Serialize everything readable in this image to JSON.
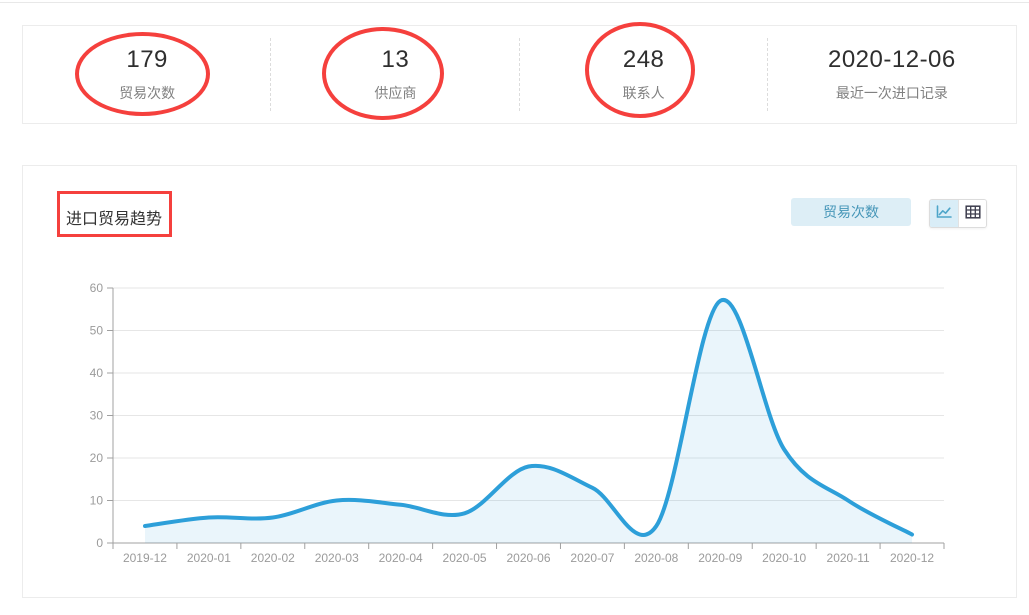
{
  "stats": {
    "items": [
      {
        "value": "179",
        "label": "贸易次数"
      },
      {
        "value": "13",
        "label": "供应商"
      },
      {
        "value": "248",
        "label": "联系人"
      },
      {
        "value": "2020-12-06",
        "label": "最近一次进口记录"
      }
    ]
  },
  "trend_panel": {
    "title": "进口贸易趋势",
    "series_button_label": "贸易次数",
    "view_toggle": {
      "options": [
        {
          "icon": "line-chart-icon",
          "active": true
        },
        {
          "icon": "table-grid-icon",
          "active": false
        }
      ]
    }
  },
  "chart_data": {
    "type": "area",
    "title": "进口贸易趋势",
    "categories": [
      "2019-12",
      "2020-01",
      "2020-02",
      "2020-03",
      "2020-04",
      "2020-05",
      "2020-06",
      "2020-07",
      "2020-08",
      "2020-09",
      "2020-10",
      "2020-11",
      "2020-12"
    ],
    "series": [
      {
        "name": "贸易次数",
        "values": [
          4,
          6,
          6,
          10,
          9,
          7,
          18,
          13,
          4,
          57,
          22,
          10,
          2
        ]
      }
    ],
    "xlabel": "",
    "ylabel": "",
    "ylim": [
      0,
      60
    ],
    "ytick_step": 10,
    "grid": "horizontal",
    "legend_position": "none",
    "line_color": "#2d9fd9",
    "fill_opacity": 0.1,
    "gridline_color": "#e6e6e6",
    "axis_color": "#a0a0a0",
    "label_color": "#9b9b9b"
  },
  "colors": {
    "annotation_red": "#f5403d",
    "accent_blue": "#2d9fd9",
    "button_bg": "#ddeef6",
    "button_text": "#4696b8"
  }
}
